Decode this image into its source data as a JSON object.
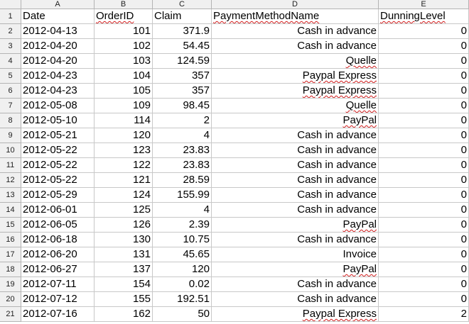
{
  "sheet": {
    "column_letters": [
      "A",
      "B",
      "C",
      "D",
      "E"
    ],
    "headers": [
      "Date",
      "OrderID",
      "Claim",
      "PaymentMethodName",
      "DunningLevel"
    ],
    "rows": [
      [
        "2012-04-13",
        "101",
        "371.9",
        "Cash in advance",
        "0"
      ],
      [
        "2012-04-20",
        "102",
        "54.45",
        "Cash in advance",
        "0"
      ],
      [
        "2012-04-20",
        "103",
        "124.59",
        "Quelle",
        "0"
      ],
      [
        "2012-04-23",
        "104",
        "357",
        "Paypal Express",
        "0"
      ],
      [
        "2012-04-23",
        "105",
        "357",
        "Paypal Express",
        "0"
      ],
      [
        "2012-05-08",
        "109",
        "98.45",
        "Quelle",
        "0"
      ],
      [
        "2012-05-10",
        "114",
        "2",
        "PayPal",
        "0"
      ],
      [
        "2012-05-21",
        "120",
        "4",
        "Cash in advance",
        "0"
      ],
      [
        "2012-05-22",
        "123",
        "23.83",
        "Cash in advance",
        "0"
      ],
      [
        "2012-05-22",
        "122",
        "23.83",
        "Cash in advance",
        "0"
      ],
      [
        "2012-05-22",
        "121",
        "28.59",
        "Cash in advance",
        "0"
      ],
      [
        "2012-05-29",
        "124",
        "155.99",
        "Cash in advance",
        "0"
      ],
      [
        "2012-06-01",
        "125",
        "4",
        "Cash in advance",
        "0"
      ],
      [
        "2012-06-05",
        "126",
        "2.39",
        "PayPal",
        "0"
      ],
      [
        "2012-06-18",
        "130",
        "10.75",
        "Cash in advance",
        "0"
      ],
      [
        "2012-06-20",
        "131",
        "45.65",
        "Invoice",
        "0"
      ],
      [
        "2012-06-27",
        "137",
        "120",
        "PayPal",
        "0"
      ],
      [
        "2012-07-11",
        "154",
        "0.02",
        "Cash in advance",
        "0"
      ],
      [
        "2012-07-12",
        "155",
        "192.51",
        "Cash in advance",
        "0"
      ],
      [
        "2012-07-16",
        "162",
        "50",
        "Paypal Express",
        "2"
      ]
    ]
  }
}
